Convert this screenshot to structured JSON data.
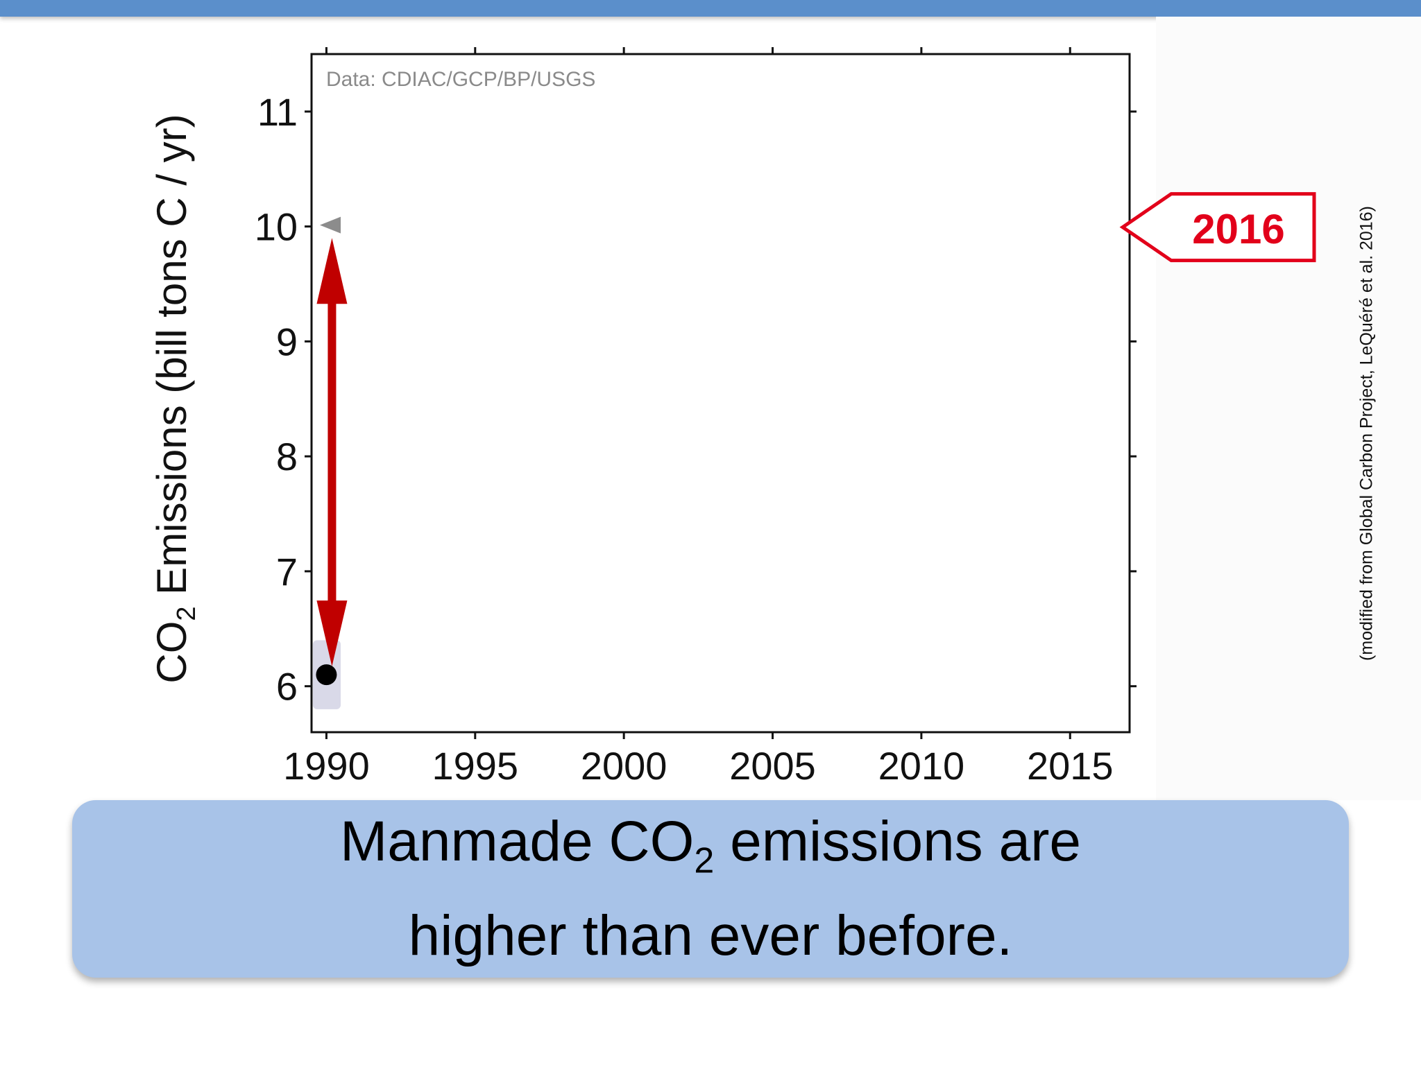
{
  "chart_data": {
    "type": "scatter",
    "source_note": "Data: CDIAC/GCP/BP/USGS",
    "ylabel": {
      "prefix": "CO",
      "subscript": "2",
      "suffix": " Emissions (bill tons C / yr)"
    },
    "xlim": [
      1989.5,
      2017
    ],
    "ylim": [
      5.6,
      11.5
    ],
    "x_ticks": [
      "1990",
      "1995",
      "2000",
      "2005",
      "2010",
      "2015"
    ],
    "y_ticks": [
      "6",
      "7",
      "8",
      "9",
      "10",
      "11"
    ],
    "grid": false,
    "points": [
      {
        "x": 1990,
        "y": 6.1
      }
    ],
    "annotations": {
      "marker_2016": {
        "x": 2016,
        "y": 10.0
      },
      "arrow": {
        "x": 1990,
        "from": 6.1,
        "to": 9.9
      },
      "tag_label": "2016"
    },
    "credit": "(modified from Global Carbon Project, LeQuéré et al. 2016)",
    "colors": {
      "arrow": "#c00000",
      "tag": "#e2001a",
      "point": "#000000",
      "band": "#d9d9e8"
    }
  },
  "caption": {
    "line1_prefix": "Manmade CO",
    "line1_subscript": "2",
    "line1_suffix": " emissions are",
    "line2": "higher than ever before."
  }
}
